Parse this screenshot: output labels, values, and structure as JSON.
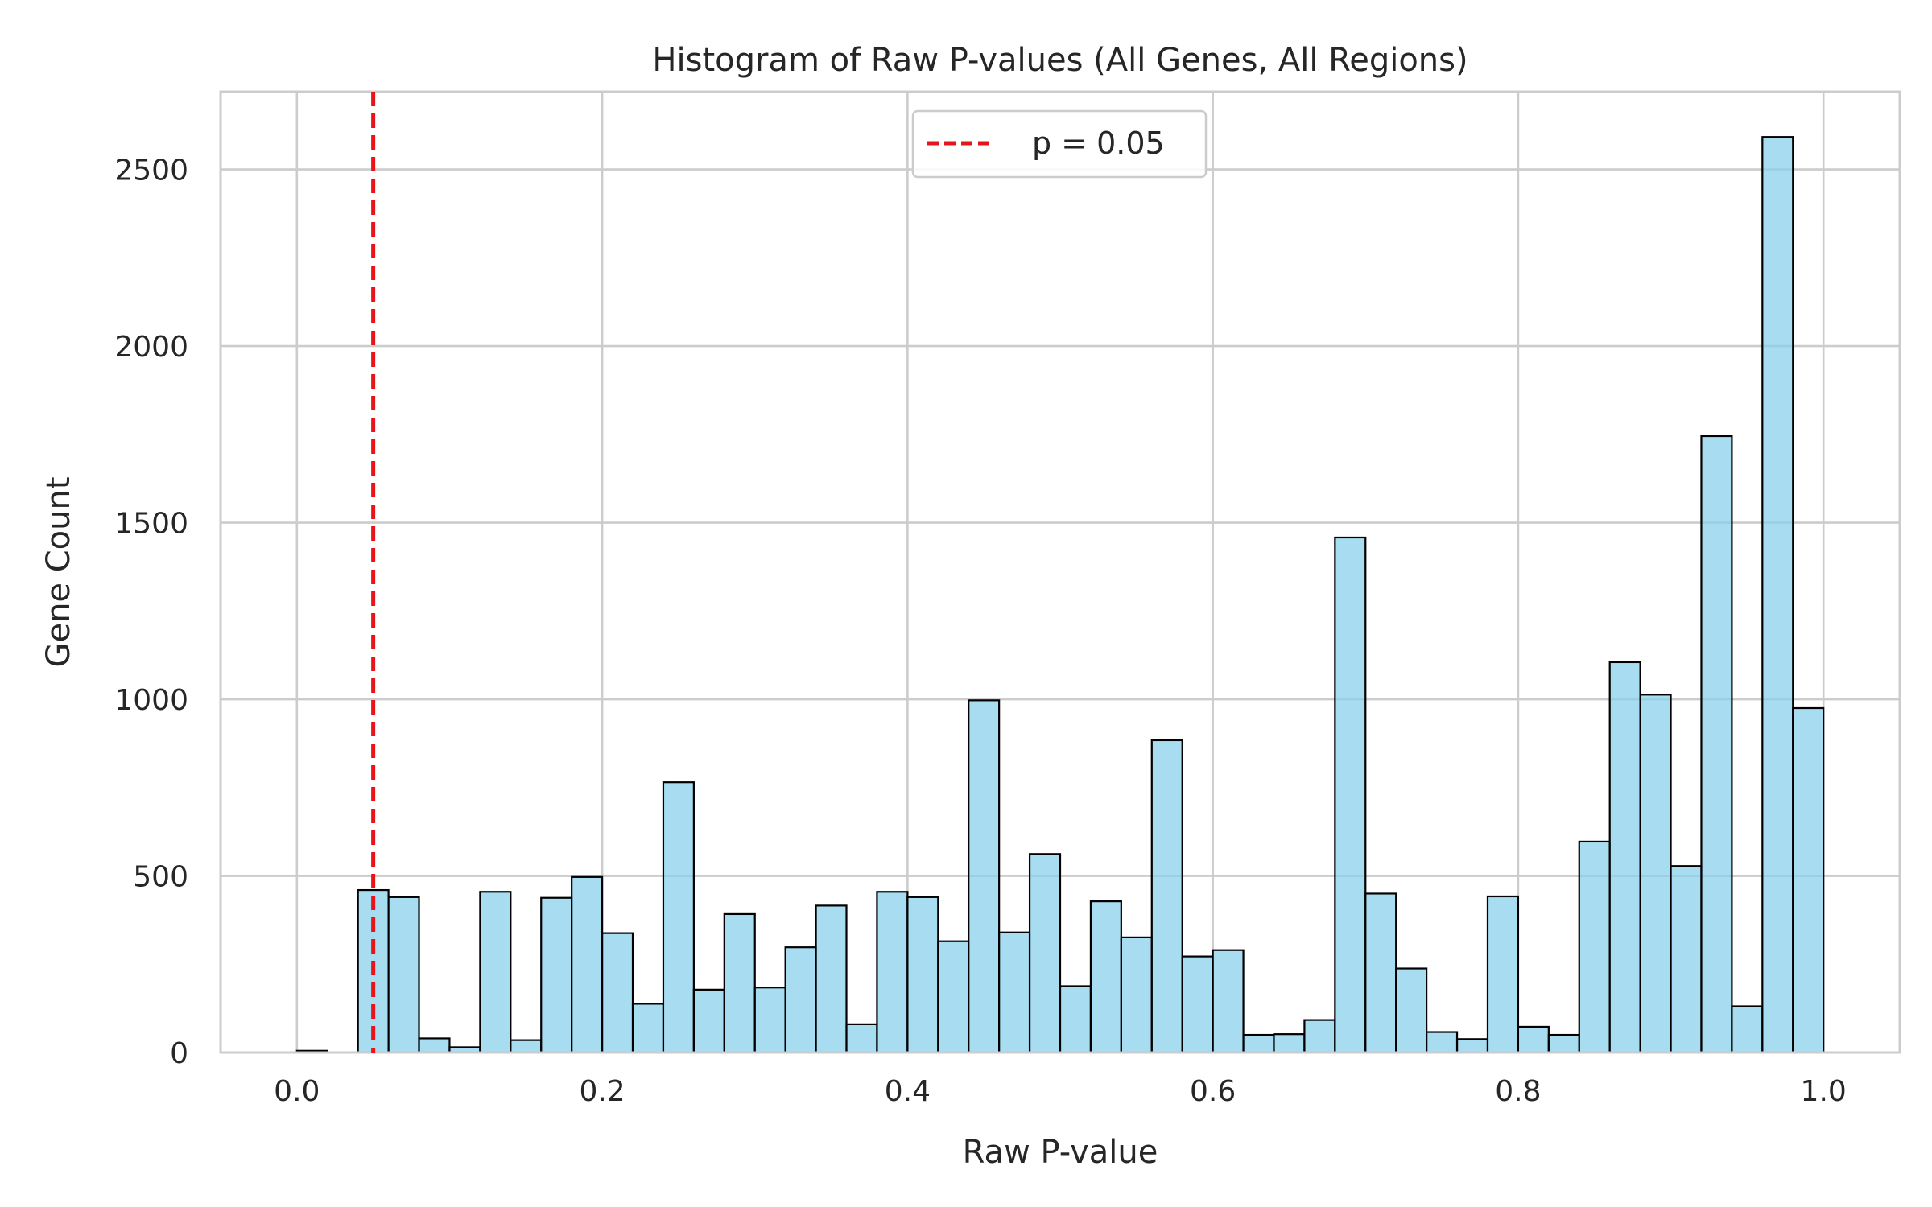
{
  "chart_data": {
    "type": "bar",
    "title": "Histogram of Raw P-values (All Genes, All Regions)",
    "xlabel": "Raw P-value",
    "ylabel": "Gene Count",
    "xlim": [
      -0.05,
      1.05
    ],
    "ylim": [
      0,
      2720
    ],
    "xticks": [
      "0.0",
      "0.2",
      "0.4",
      "0.6",
      "0.8",
      "1.0"
    ],
    "yticks": [
      "0",
      "500",
      "1000",
      "1500",
      "2000",
      "2500"
    ],
    "grid": true,
    "legend_position": "top-center",
    "bin_edges_start": 0.0,
    "bin_width": 0.02,
    "values": [
      5,
      0,
      460,
      440,
      40,
      15,
      455,
      35,
      438,
      497,
      338,
      138,
      765,
      178,
      392,
      184,
      298,
      416,
      80,
      455,
      440,
      315,
      997,
      340,
      562,
      188,
      428,
      326,
      884,
      272,
      290,
      50,
      52,
      92,
      1458,
      450,
      238,
      58,
      38,
      442,
      73,
      50,
      597,
      1105,
      1013,
      528,
      1745,
      131,
      2592,
      975
    ],
    "reference_line": {
      "x": 0.05,
      "label": "p = 0.05",
      "color": "#e8141a"
    },
    "bar_color": "#87ceeb"
  }
}
